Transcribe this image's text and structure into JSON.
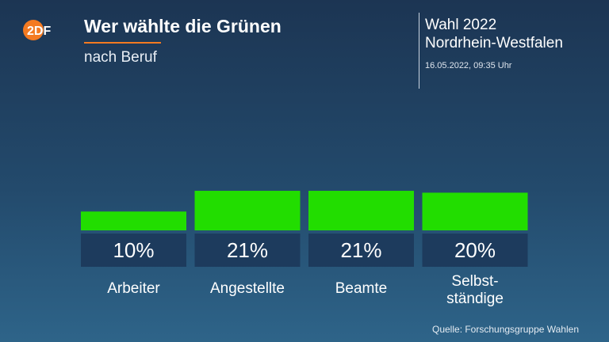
{
  "header": {
    "title": "Wer wählte die Grünen",
    "subtitle": "nach Beruf",
    "election": "Wahl 2022",
    "region": "Nordrhein-Westfalen",
    "timestamp": "16.05.2022, 09:35 Uhr"
  },
  "logo": {
    "name": "ZDF",
    "text": "2DF"
  },
  "colors": {
    "bar": "#22dd00",
    "value_box": "#1d3b5d",
    "accent": "#f47a21",
    "logo_circle": "#f47a21"
  },
  "chart_data": {
    "type": "bar",
    "categories": [
      "Arbeiter",
      "Angestellte",
      "Beamte",
      "Selbst-\nständige"
    ],
    "values": [
      10,
      21,
      21,
      20
    ],
    "value_labels": [
      "10%",
      "21%",
      "21%",
      "20%"
    ],
    "unit": "%",
    "title": "Wer wählte die Grünen",
    "subtitle": "nach Beruf",
    "xlabel": "",
    "ylabel": "",
    "grid": false,
    "legend": "none"
  },
  "footer": {
    "source": "Quelle: Forschungsgruppe Wahlen"
  }
}
